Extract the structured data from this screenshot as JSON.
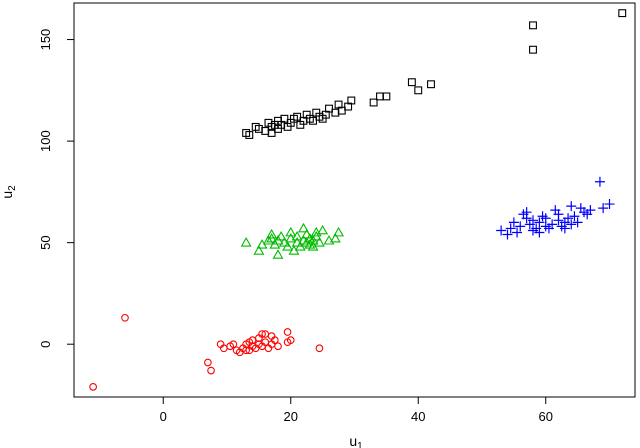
{
  "chart_data": {
    "type": "scatter",
    "xlabel": "u",
    "xlabel_sub": "1",
    "ylabel": "u",
    "ylabel_sub": "2",
    "xlim": [
      -14,
      74
    ],
    "ylim": [
      -26,
      168
    ],
    "x_ticks": [
      0,
      20,
      40,
      60
    ],
    "y_ticks": [
      0,
      50,
      100,
      150
    ],
    "x_tick_labels": [
      "0",
      "20",
      "40",
      "60"
    ],
    "y_tick_labels": [
      "0",
      "50",
      "100",
      "150"
    ],
    "grid": false,
    "series": [
      {
        "marker": "circle",
        "color": "#ff0000",
        "points": [
          [
            -11,
            -21
          ],
          [
            -6,
            13
          ],
          [
            7,
            -9
          ],
          [
            7.5,
            -13
          ],
          [
            9,
            0
          ],
          [
            9.5,
            -2
          ],
          [
            10.5,
            -1
          ],
          [
            11,
            0
          ],
          [
            11.5,
            -3
          ],
          [
            12,
            -4
          ],
          [
            12.5,
            -2
          ],
          [
            13,
            0
          ],
          [
            13,
            -3
          ],
          [
            13.5,
            1
          ],
          [
            14,
            -1
          ],
          [
            14,
            2
          ],
          [
            14.5,
            -2
          ],
          [
            15,
            0
          ],
          [
            15,
            3
          ],
          [
            15.5,
            -1
          ],
          [
            16,
            1
          ],
          [
            16,
            5
          ],
          [
            16.5,
            -2
          ],
          [
            17,
            0
          ],
          [
            17,
            4
          ],
          [
            17.5,
            2
          ],
          [
            18,
            -1
          ],
          [
            13.5,
            -3
          ],
          [
            15.5,
            5
          ],
          [
            19.5,
            1
          ],
          [
            20,
            2
          ],
          [
            19.5,
            6
          ],
          [
            24.5,
            -2
          ]
        ]
      },
      {
        "marker": "triangle",
        "color": "#00bb00",
        "points": [
          [
            13,
            50
          ],
          [
            15,
            46
          ],
          [
            15.5,
            49
          ],
          [
            16.5,
            51
          ],
          [
            17,
            52
          ],
          [
            17,
            54
          ],
          [
            17.5,
            49
          ],
          [
            18,
            44
          ],
          [
            18,
            51
          ],
          [
            18.5,
            53
          ],
          [
            19,
            50
          ],
          [
            19.5,
            48
          ],
          [
            20,
            52
          ],
          [
            20,
            55
          ],
          [
            20.5,
            46
          ],
          [
            21,
            50
          ],
          [
            21,
            53
          ],
          [
            21.5,
            48
          ],
          [
            22,
            51
          ],
          [
            22,
            57
          ],
          [
            22.5,
            50
          ],
          [
            22.5,
            54
          ],
          [
            23,
            52
          ],
          [
            23,
            49
          ],
          [
            23.5,
            51
          ],
          [
            23.5,
            48
          ],
          [
            24,
            53
          ],
          [
            24.5,
            50
          ],
          [
            25,
            56
          ],
          [
            26,
            51
          ],
          [
            27,
            52
          ],
          [
            27.5,
            55
          ],
          [
            24,
            55
          ]
        ]
      },
      {
        "marker": "square",
        "color": "#000000",
        "points": [
          [
            13,
            104
          ],
          [
            13.5,
            103
          ],
          [
            14.5,
            107
          ],
          [
            15,
            106
          ],
          [
            16,
            105
          ],
          [
            16.5,
            109
          ],
          [
            17,
            107
          ],
          [
            17,
            104
          ],
          [
            17.5,
            108
          ],
          [
            18,
            106
          ],
          [
            18,
            110
          ],
          [
            18.5,
            108
          ],
          [
            19,
            111
          ],
          [
            19.5,
            107
          ],
          [
            20,
            109
          ],
          [
            20.5,
            111
          ],
          [
            21,
            112
          ],
          [
            21.5,
            108
          ],
          [
            22,
            110
          ],
          [
            22.5,
            113
          ],
          [
            23,
            111
          ],
          [
            23.5,
            110
          ],
          [
            24,
            114
          ],
          [
            24.5,
            112
          ],
          [
            25,
            111
          ],
          [
            25.5,
            113
          ],
          [
            26,
            116
          ],
          [
            27,
            114
          ],
          [
            27.5,
            118
          ],
          [
            28,
            115
          ],
          [
            29,
            117
          ],
          [
            29.5,
            120
          ],
          [
            33,
            119
          ],
          [
            34,
            122
          ],
          [
            35,
            122
          ],
          [
            39,
            129
          ],
          [
            40,
            125
          ],
          [
            42,
            128
          ],
          [
            58,
            157
          ],
          [
            58,
            145
          ],
          [
            72,
            163
          ]
        ]
      },
      {
        "marker": "plus",
        "color": "#0000ff",
        "points": [
          [
            53,
            56
          ],
          [
            54,
            54
          ],
          [
            54.5,
            57
          ],
          [
            55,
            60
          ],
          [
            55.5,
            55
          ],
          [
            56,
            58
          ],
          [
            56.5,
            64
          ],
          [
            57,
            62
          ],
          [
            57.5,
            59
          ],
          [
            58,
            56
          ],
          [
            58,
            61
          ],
          [
            58.5,
            57
          ],
          [
            59,
            60
          ],
          [
            59,
            55
          ],
          [
            59.5,
            63
          ],
          [
            60,
            58
          ],
          [
            60,
            62
          ],
          [
            60.5,
            57
          ],
          [
            61,
            59
          ],
          [
            61.5,
            66
          ],
          [
            62,
            61
          ],
          [
            62,
            64
          ],
          [
            62.5,
            58
          ],
          [
            63,
            60
          ],
          [
            63,
            57
          ],
          [
            63.5,
            62
          ],
          [
            64,
            59
          ],
          [
            64,
            68
          ],
          [
            64.5,
            63
          ],
          [
            65,
            60
          ],
          [
            65.5,
            67
          ],
          [
            66,
            65
          ],
          [
            66.5,
            64
          ],
          [
            67,
            66
          ],
          [
            68.5,
            80
          ],
          [
            69,
            67
          ],
          [
            70,
            69
          ],
          [
            57,
            65
          ]
        ]
      }
    ]
  }
}
